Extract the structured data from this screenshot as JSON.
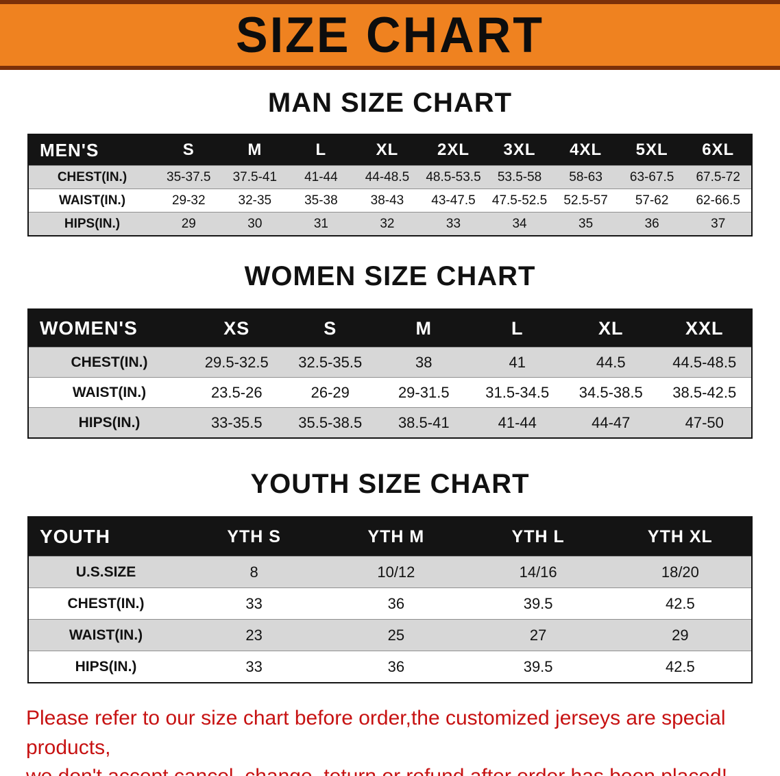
{
  "banner": {
    "title": "SIZE CHART",
    "background": "#ef8220",
    "border_color": "#7b3009"
  },
  "sections": [
    {
      "id": "men",
      "heading": "MAN SIZE CHART",
      "table": {
        "header": [
          "MEN'S",
          "S",
          "M",
          "L",
          "XL",
          "2XL",
          "3XL",
          "4XL",
          "5XL",
          "6XL"
        ],
        "rows": [
          {
            "label": "CHEST(IN.)",
            "values": [
              "35-37.5",
              "37.5-41",
              "41-44",
              "44-48.5",
              "48.5-53.5",
              "53.5-58",
              "58-63",
              "63-67.5",
              "67.5-72"
            ]
          },
          {
            "label": "WAIST(IN.)",
            "values": [
              "29-32",
              "32-35",
              "35-38",
              "38-43",
              "43-47.5",
              "47.5-52.5",
              "52.5-57",
              "57-62",
              "62-66.5"
            ]
          },
          {
            "label": "HIPS(IN.)",
            "values": [
              "29",
              "30",
              "31",
              "32",
              "33",
              "34",
              "35",
              "36",
              "37"
            ]
          }
        ]
      }
    },
    {
      "id": "women",
      "heading": "WOMEN SIZE CHART",
      "table": {
        "header": [
          "WOMEN'S",
          "XS",
          "S",
          "M",
          "L",
          "XL",
          "XXL"
        ],
        "rows": [
          {
            "label": "CHEST(IN.)",
            "values": [
              "29.5-32.5",
              "32.5-35.5",
              "38",
              "41",
              "44.5",
              "44.5-48.5"
            ]
          },
          {
            "label": "WAIST(IN.)",
            "values": [
              "23.5-26",
              "26-29",
              "29-31.5",
              "31.5-34.5",
              "34.5-38.5",
              "38.5-42.5"
            ]
          },
          {
            "label": "HIPS(IN.)",
            "values": [
              "33-35.5",
              "35.5-38.5",
              "38.5-41",
              "41-44",
              "44-47",
              "47-50"
            ]
          }
        ]
      }
    },
    {
      "id": "youth",
      "heading": "YOUTH SIZE CHART",
      "table": {
        "header": [
          "YOUTH",
          "YTH S",
          "YTH M",
          "YTH L",
          "YTH XL"
        ],
        "rows": [
          {
            "label": "U.S.SIZE",
            "values": [
              "8",
              "10/12",
              "14/16",
              "18/20"
            ]
          },
          {
            "label": "CHEST(IN.)",
            "values": [
              "33",
              "36",
              "39.5",
              "42.5"
            ]
          },
          {
            "label": "WAIST(IN.)",
            "values": [
              "23",
              "25",
              "27",
              "29"
            ]
          },
          {
            "label": "HIPS(IN.)",
            "values": [
              "33",
              "36",
              "39.5",
              "42.5"
            ]
          }
        ]
      }
    }
  ],
  "footer": {
    "line1": "Please refer to our size chart before order,the customized jerseys are special products,",
    "line2": "we don't accept cancel, change, teturn or refund after order has been placed!",
    "color": "#c71212"
  }
}
